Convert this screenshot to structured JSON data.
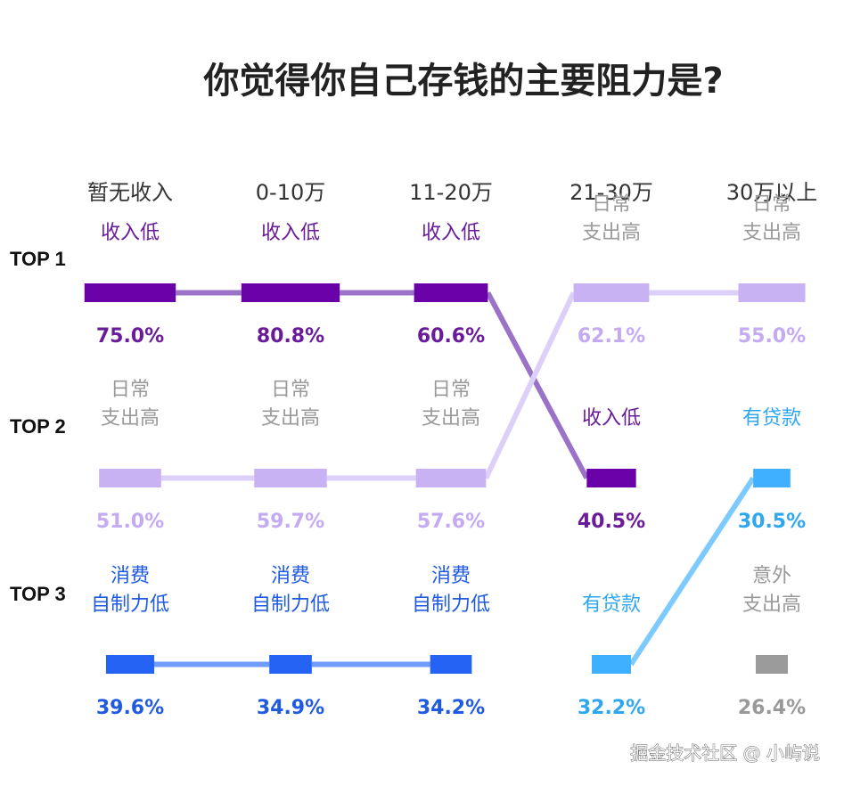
{
  "chart_data": {
    "type": "table",
    "title": "你觉得你自己存钱的主要阻力是?",
    "categories": [
      "暂无收入",
      "0-10万",
      "11-20万",
      "21-30万",
      "30万以上"
    ],
    "ranks": [
      "TOP 1",
      "TOP 2",
      "TOP 3"
    ],
    "reasons": {
      "income_low": {
        "label": [
          "收入低"
        ],
        "color": "#6a00a8",
        "line_color": "#9a72c8",
        "text_color": "#6a1b9a"
      },
      "daily_spend": {
        "label": [
          "日常",
          "支出高"
        ],
        "color": "#c9b2f3",
        "line_color": "#ddd0f8",
        "text_color": "#999999",
        "pct_color": "#c4aaf0"
      },
      "self_control": {
        "label": [
          "消费",
          "自制力低"
        ],
        "color": "#2563f5",
        "line_color": "#6f9cf8",
        "text_color": "#1f5ae0"
      },
      "loan": {
        "label": [
          "有贷款"
        ],
        "color": "#3fb0ff",
        "line_color": "#7ccaff",
        "text_color": "#2ea7f0"
      },
      "accident_spend": {
        "label": [
          "意外",
          "支出高"
        ],
        "color": "#9b9b9b",
        "line_color": "#cccccc",
        "text_color": "#999999"
      }
    },
    "series": [
      {
        "name": "TOP 1",
        "values": [
          {
            "reason": "income_low",
            "value": 75.0,
            "display": "75.0%"
          },
          {
            "reason": "income_low",
            "value": 80.8,
            "display": "80.8%"
          },
          {
            "reason": "income_low",
            "value": 60.6,
            "display": "60.6%"
          },
          {
            "reason": "daily_spend",
            "value": 62.1,
            "display": "62.1%"
          },
          {
            "reason": "daily_spend",
            "value": 55.0,
            "display": "55.0%"
          }
        ]
      },
      {
        "name": "TOP 2",
        "values": [
          {
            "reason": "daily_spend",
            "value": 51.0,
            "display": "51.0%"
          },
          {
            "reason": "daily_spend",
            "value": 59.7,
            "display": "59.7%"
          },
          {
            "reason": "daily_spend",
            "value": 57.6,
            "display": "57.6%"
          },
          {
            "reason": "income_low",
            "value": 40.5,
            "display": "40.5%"
          },
          {
            "reason": "loan",
            "value": 30.5,
            "display": "30.5%"
          }
        ]
      },
      {
        "name": "TOP 3",
        "values": [
          {
            "reason": "self_control",
            "value": 39.6,
            "display": "39.6%"
          },
          {
            "reason": "self_control",
            "value": 34.9,
            "display": "34.9%"
          },
          {
            "reason": "self_control",
            "value": 34.2,
            "display": "34.2%"
          },
          {
            "reason": "loan",
            "value": 32.2,
            "display": "32.2%"
          },
          {
            "reason": "accident_spend",
            "value": 26.4,
            "display": "26.4%"
          }
        ]
      }
    ]
  },
  "watermark": "掘金技术社区 @ 小屿说"
}
